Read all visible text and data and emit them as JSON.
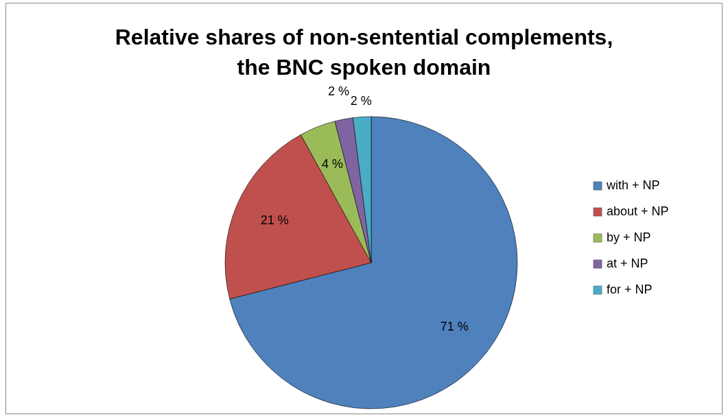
{
  "chart_data": {
    "type": "pie",
    "title": "Relative shares of non-sentential complements,\nthe BNC spoken domain",
    "categories": [
      "with + NP",
      "about + NP",
      "by + NP",
      "at + NP",
      "for + NP"
    ],
    "values": [
      71,
      21,
      4,
      2,
      2
    ],
    "colors": [
      "#4f81bd",
      "#c0504d",
      "#9bbb59",
      "#8064a2",
      "#4bacc6"
    ],
    "value_labels": [
      "71 %",
      "21 %",
      "4 %",
      "2 %",
      "2 %"
    ],
    "legend": "right"
  }
}
